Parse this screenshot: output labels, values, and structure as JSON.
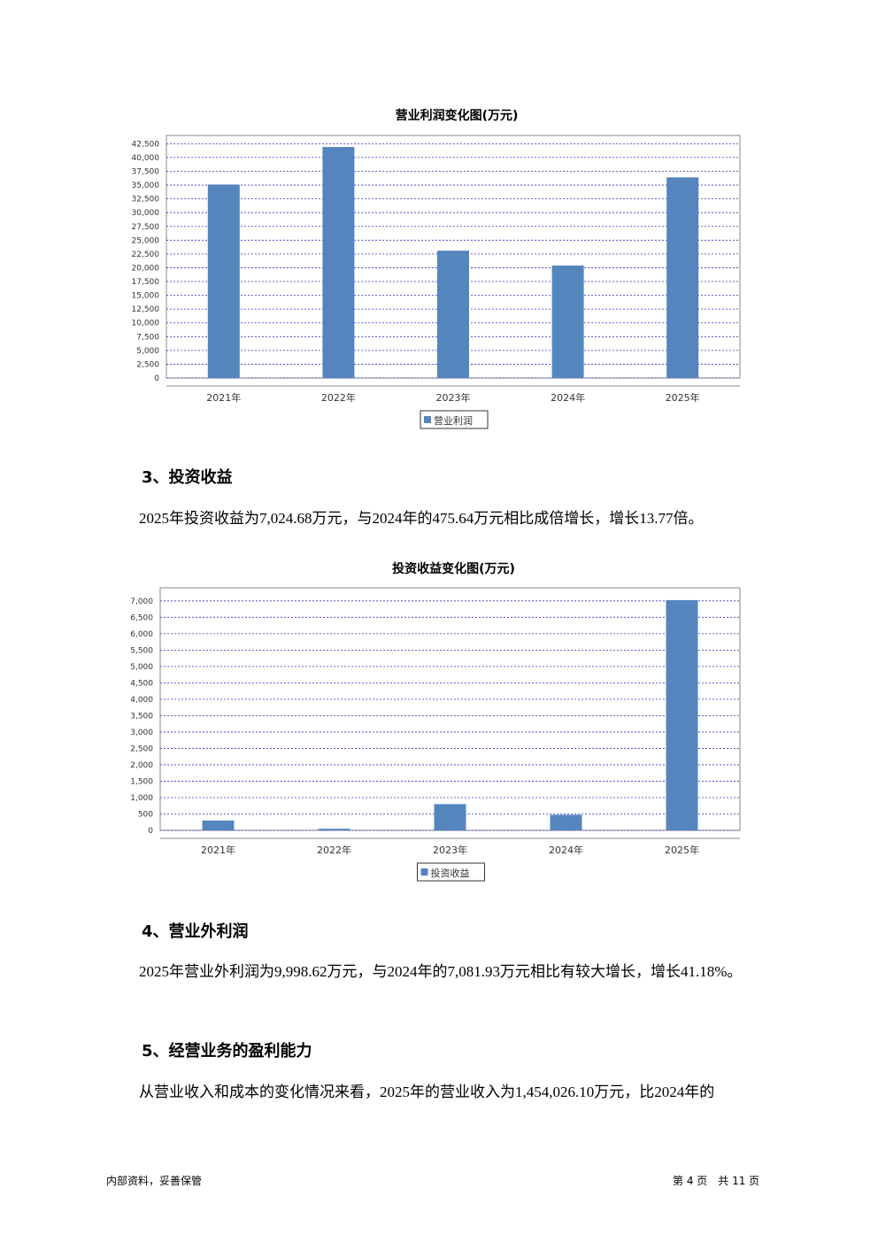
{
  "chart_data": [
    {
      "type": "bar",
      "title": "营业利润变化图(万元)",
      "categories": [
        "2021年",
        "2022年",
        "2023年",
        "2024年",
        "2025年"
      ],
      "series": [
        {
          "name": "营业利润",
          "color": "#5585bd",
          "values": [
            35100,
            41900,
            23100,
            20400,
            36400
          ]
        }
      ],
      "ylim": [
        0,
        44000
      ],
      "yticks": [
        0,
        {
          "value": 2500,
          "label": "2,500"
        },
        {
          "value": 5000,
          "label": "5,000"
        },
        {
          "value": 7500,
          "label": "7,500"
        },
        {
          "value": 10000,
          "label": "10,000"
        },
        {
          "value": 12500,
          "label": "12,500"
        },
        {
          "value": 15000,
          "label": "15,000"
        },
        {
          "value": 17500,
          "label": "17,500"
        },
        {
          "value": 20000,
          "label": "20,000"
        },
        {
          "value": 22500,
          "label": "22,500"
        },
        {
          "value": 25000,
          "label": "25,000"
        },
        {
          "value": 27500,
          "label": "27,500"
        },
        {
          "value": 30000,
          "label": "30,000"
        },
        {
          "value": 32500,
          "label": "32,500"
        },
        {
          "value": 35000,
          "label": "35,000"
        },
        {
          "value": 37500,
          "label": "37,500"
        },
        {
          "value": 40000,
          "label": "40,000"
        },
        {
          "value": 42500,
          "label": "42,500"
        }
      ],
      "grid": true
    },
    {
      "type": "bar",
      "title": "投资收益变化图(万元)",
      "categories": [
        "2021年",
        "2022年",
        "2023年",
        "2024年",
        "2025年"
      ],
      "series": [
        {
          "name": "投资收益",
          "color": "#5585bd",
          "values": [
            300,
            50,
            800,
            475.64,
            7024.68
          ]
        }
      ],
      "ylim": [
        0,
        7400
      ],
      "yticks": [
        0,
        500,
        {
          "value": 1000,
          "label": "1,000"
        },
        {
          "value": 1500,
          "label": "1,500"
        },
        {
          "value": 2000,
          "label": "2,000"
        },
        {
          "value": 2500,
          "label": "2,500"
        },
        {
          "value": 3000,
          "label": "3,000"
        },
        {
          "value": 3500,
          "label": "3,500"
        },
        {
          "value": 4000,
          "label": "4,000"
        },
        {
          "value": 4500,
          "label": "4,500"
        },
        {
          "value": 5000,
          "label": "5,000"
        },
        {
          "value": 5500,
          "label": "5,500"
        },
        {
          "value": 6000,
          "label": "6,000"
        },
        {
          "value": 6500,
          "label": "6,500"
        },
        {
          "value": 7000,
          "label": "7,000"
        }
      ],
      "grid": true
    }
  ],
  "document": {
    "sections": [
      {
        "heading": "3、投资收益",
        "text": "2025年投资收益为7,024.68万元，与2024年的475.64万元相比成倍增长，增长13.77倍。"
      },
      {
        "heading": "4、营业外利润",
        "text": "2025年营业外利润为9,998.62万元，与2024年的7,081.93万元相比有较大增长，增长41.18%。"
      },
      {
        "heading": "5、经营业务的盈利能力",
        "text": "从营业收入和成本的变化情况来看，2025年的营业收入为1,454,026.10万元，比2024年的"
      }
    ],
    "footer": {
      "left": "内部资料，妥善保管",
      "right": "第 4 页　共 11 页"
    }
  }
}
